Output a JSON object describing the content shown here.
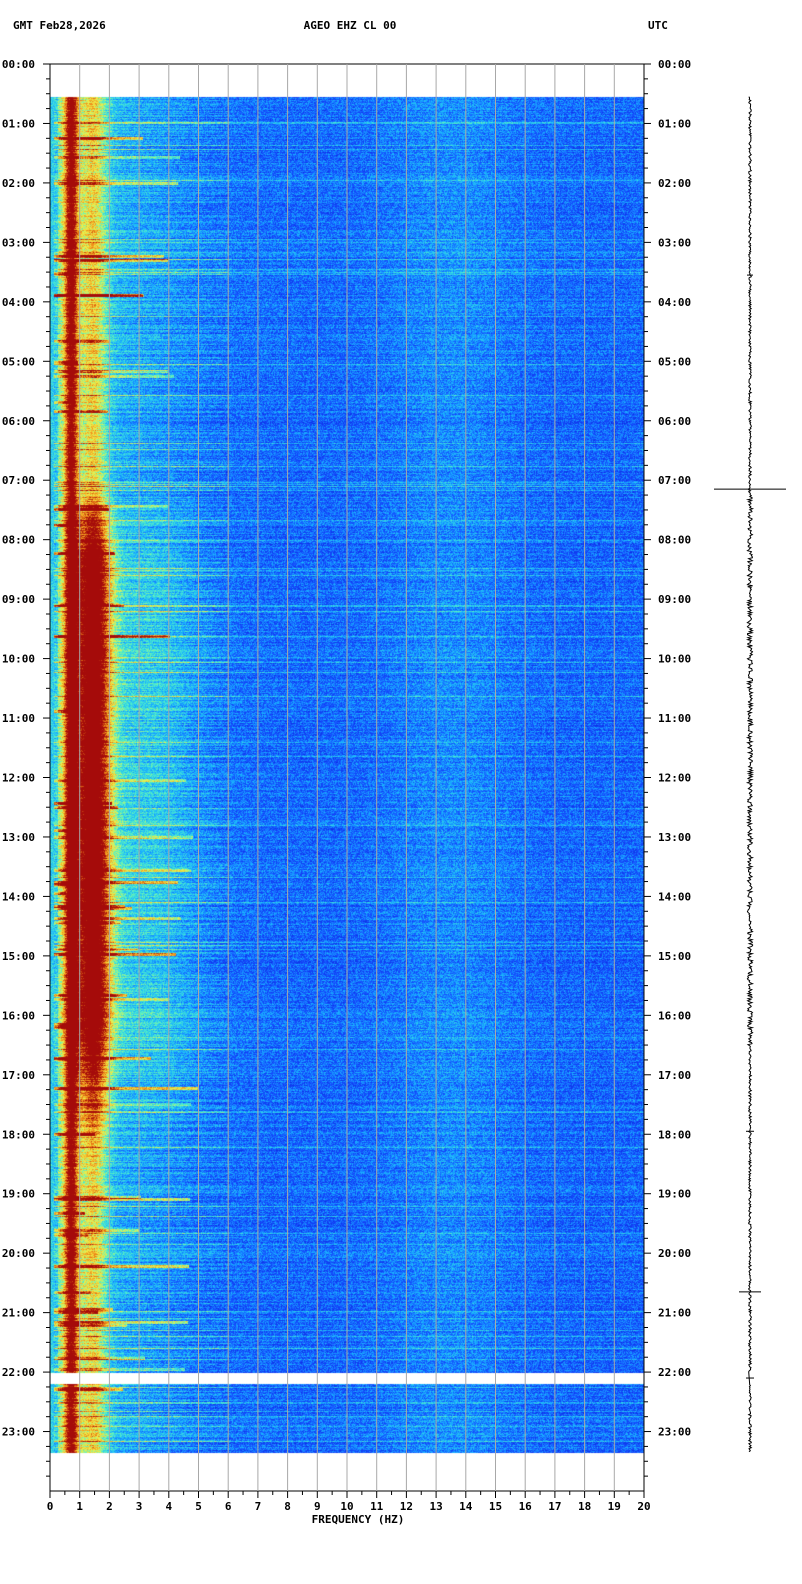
{
  "header": {
    "left": "GMT  Feb28,2026",
    "center": "AGEO EHZ CL 00",
    "right": "UTC"
  },
  "chart_data": {
    "type": "heatmap",
    "title": "AGEO EHZ CL 00",
    "date": "Feb28,2026",
    "xlabel": "FREQUENCY (HZ)",
    "xlim": [
      0,
      20
    ],
    "x_ticks": [
      "0",
      "1",
      "2",
      "3",
      "4",
      "5",
      "6",
      "7",
      "8",
      "9",
      "10",
      "11",
      "12",
      "13",
      "14",
      "15",
      "16",
      "17",
      "18",
      "19",
      "20"
    ],
    "ylim_hours": [
      0,
      24
    ],
    "y_ticks": [
      "00:00",
      "01:00",
      "02:00",
      "03:00",
      "04:00",
      "05:00",
      "06:00",
      "07:00",
      "08:00",
      "09:00",
      "10:00",
      "11:00",
      "12:00",
      "13:00",
      "14:00",
      "15:00",
      "16:00",
      "17:00",
      "18:00",
      "19:00",
      "20:00",
      "21:00",
      "22:00",
      "23:00"
    ],
    "data_start_hour": 0.55,
    "data_end_hour": 23.35,
    "data_gap_hours": [
      22.0,
      22.2
    ],
    "grid": true,
    "colormap": [
      "#0a1fd8",
      "#1550ff",
      "#19b4ff",
      "#52f0c8",
      "#f0f048",
      "#f08a18",
      "#a50a0a"
    ],
    "colors": {
      "background": "#ffffff",
      "grid": "#a8a8a8",
      "trace": "#000000"
    }
  }
}
